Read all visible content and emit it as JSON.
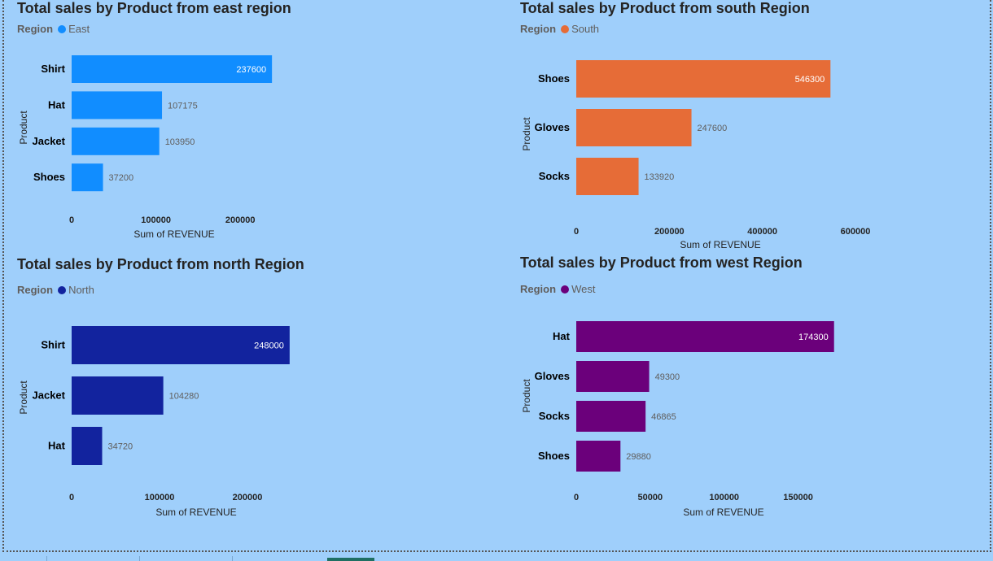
{
  "chart_data": [
    {
      "type": "bar",
      "orientation": "horizontal",
      "title": "Total sales by Product from east region",
      "legend_title": "Region",
      "series": [
        {
          "name": "East",
          "color": "#118dff",
          "values": [
            237600,
            107175,
            103950,
            37200
          ]
        }
      ],
      "categories": [
        "Shirt",
        "Hat",
        "Jacket",
        "Shoes"
      ],
      "xlabel": "Sum of REVENUE",
      "ylabel": "Product",
      "xticks": [
        0,
        100000,
        200000
      ],
      "xlim": [
        0,
        200000
      ],
      "legend_placement": "top-left",
      "grid": false
    },
    {
      "type": "bar",
      "orientation": "horizontal",
      "title": "Total sales by Product from south Region",
      "legend_title": "Region",
      "series": [
        {
          "name": "South",
          "color": "#e66c37",
          "values": [
            546300,
            247600,
            133920
          ]
        }
      ],
      "categories": [
        "Shoes",
        "Gloves",
        "Socks"
      ],
      "xlabel": "Sum of REVENUE",
      "ylabel": "Product",
      "xticks": [
        0,
        200000,
        400000,
        600000
      ],
      "xlim": [
        0,
        600000
      ],
      "legend_placement": "top-left",
      "grid": false
    },
    {
      "type": "bar",
      "orientation": "horizontal",
      "title": "Total sales by Product from north Region",
      "legend_title": "Region",
      "series": [
        {
          "name": "North",
          "color": "#12239e",
          "values": [
            248000,
            104280,
            34720
          ]
        }
      ],
      "categories": [
        "Shirt",
        "Jacket",
        "Hat"
      ],
      "xlabel": "Sum of REVENUE",
      "ylabel": "Product",
      "xticks": [
        0,
        100000,
        200000
      ],
      "xlim": [
        0,
        200000
      ],
      "legend_placement": "top-left",
      "grid": false
    },
    {
      "type": "bar",
      "orientation": "horizontal",
      "title": "Total sales by Product from west Region",
      "legend_title": "Region",
      "series": [
        {
          "name": "West",
          "color": "#6b007b",
          "values": [
            174300,
            49300,
            46865,
            29880
          ]
        }
      ],
      "categories": [
        "Hat",
        "Gloves",
        "Socks",
        "Shoes"
      ],
      "xlabel": "Sum of REVENUE",
      "ylabel": "Product",
      "xticks": [
        0,
        50000,
        100000,
        150000
      ],
      "xlim": [
        0,
        150000
      ],
      "legend_placement": "top-left",
      "grid": false
    }
  ]
}
